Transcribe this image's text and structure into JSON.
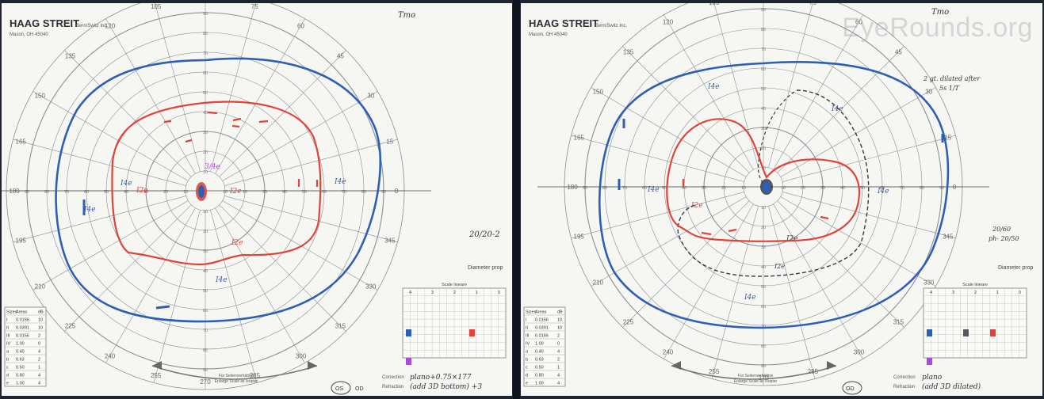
{
  "left": {
    "brand": "HAAG STREIT",
    "brand_sub": "Bern/Switz Inc.",
    "brand_loc": "Mason, OH 45040",
    "label_top_right": "Tmo",
    "note_side": "20/20-2",
    "diameter_label": "Diameter prop",
    "eye_left": "OS",
    "eye_right": "OD",
    "correction_label": "Correction",
    "correction_value": "plano+0.75×177",
    "refraction_label": "Refraction",
    "refraction_value": "(add 3D bottom) +3",
    "footer_center_1": "Für Seitenverhältnis",
    "footer_center_2": "Enlarge Scale as Isopter",
    "isopter_labels": [
      "I4e",
      "I2e",
      "I2e",
      "I4e",
      "I2e",
      "I2e"
    ],
    "center_mark": "3/4e"
  },
  "right": {
    "brand": "HAAG STREIT",
    "brand_sub": "Bern/Switz Inc.",
    "brand_loc": "Mason, OH 45040",
    "label_top_right": "Tmo",
    "watermark": "EyeRounds.org",
    "note_top": "2 gt. dilated after",
    "note_top2": "5s 1/T",
    "note_side": "20/60",
    "note_side2": "ph- 20/50",
    "diameter_label": "Diameter prop",
    "eye_left": "OD",
    "correction_label": "Correction",
    "correction_value": "plano",
    "refraction_label": "Refraction",
    "refraction_value": "(add 3D dilated)",
    "footer_center_1": "Für Seitenverhältnis",
    "footer_center_2": "Enlarge Scale as Isopter"
  },
  "angles": [
    "90",
    "75",
    "60",
    "45",
    "30",
    "15",
    "0",
    "345",
    "330",
    "315",
    "300",
    "285",
    "270",
    "255",
    "240",
    "225",
    "210",
    "195",
    "180",
    "165",
    "150",
    "135",
    "120",
    "105"
  ],
  "radial_ticks": [
    "10",
    "20",
    "30",
    "40",
    "50",
    "60",
    "70",
    "80",
    "90"
  ],
  "table": {
    "header": [
      "Sizes",
      "Areas",
      "dB"
    ],
    "rows": [
      [
        "I",
        "0.0156",
        "10"
      ],
      [
        "II",
        "0.0391",
        "10"
      ],
      [
        "III",
        "0.0156",
        "2"
      ],
      [
        "IV",
        "1.00",
        "0"
      ],
      [
        "a",
        "0.40",
        "4"
      ],
      [
        "b",
        "0.63",
        "2"
      ],
      [
        "c",
        "0.50",
        "1"
      ],
      [
        "d",
        "0.80",
        "4"
      ],
      [
        "e",
        "1.00",
        "4"
      ]
    ]
  },
  "grid_title": "Scale lineare",
  "grid_cols": [
    "4",
    "3",
    "2",
    "1",
    "0"
  ],
  "colors": {
    "blue_isopter": "#2f5fb5",
    "red_isopter": "#e0433a",
    "grid_line": "#8a8f96",
    "black_isopter": "#333a40",
    "purple_mark": "#a64bd6",
    "paper": "#f6f7f3",
    "divider": "#0d1420"
  }
}
